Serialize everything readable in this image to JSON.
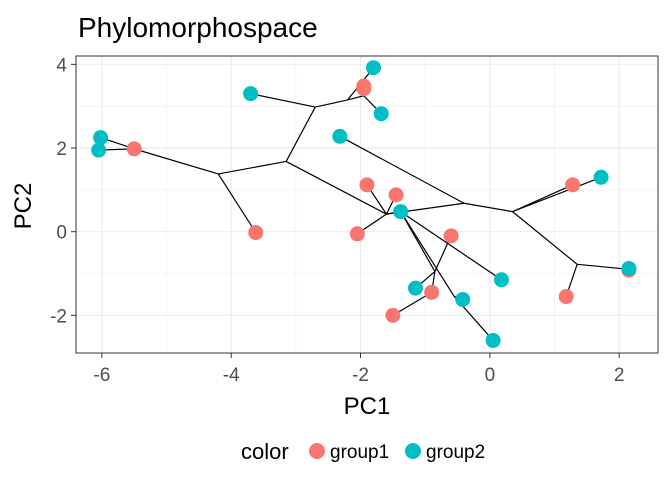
{
  "chart_data": {
    "type": "scatter",
    "title": "Phylomorphospace",
    "xlabel": "PC1",
    "ylabel": "PC2",
    "xlim": [
      -6.4,
      2.6
    ],
    "ylim": [
      -2.9,
      4.2
    ],
    "x_ticks": [
      -6,
      -4,
      -2,
      0,
      2
    ],
    "y_ticks": [
      -2,
      0,
      2,
      4
    ],
    "grid": true,
    "legend": {
      "title": "color",
      "position": "bottom",
      "entries": [
        {
          "label": "group1",
          "color": "#F8766D"
        },
        {
          "label": "group2",
          "color": "#00BFC4"
        }
      ]
    },
    "series": [
      {
        "name": "group1",
        "color": "#F8766D",
        "points": [
          {
            "x": -5.5,
            "y": 1.98
          },
          {
            "x": -3.62,
            "y": -0.02
          },
          {
            "x": -1.95,
            "y": 3.48
          },
          {
            "x": -1.95,
            "y": 3.42
          },
          {
            "x": -1.9,
            "y": 1.12
          },
          {
            "x": -2.05,
            "y": -0.05
          },
          {
            "x": -1.45,
            "y": 0.88
          },
          {
            "x": -0.6,
            "y": -0.1
          },
          {
            "x": -0.9,
            "y": -1.45
          },
          {
            "x": -1.5,
            "y": -2.0
          },
          {
            "x": 1.28,
            "y": 1.12
          },
          {
            "x": 1.18,
            "y": -1.55
          },
          {
            "x": 2.15,
            "y": -0.92
          }
        ]
      },
      {
        "name": "group2",
        "color": "#00BFC4",
        "points": [
          {
            "x": -6.02,
            "y": 2.25
          },
          {
            "x": -6.05,
            "y": 1.95
          },
          {
            "x": -3.7,
            "y": 3.3
          },
          {
            "x": -1.8,
            "y": 3.92
          },
          {
            "x": -1.68,
            "y": 2.82
          },
          {
            "x": -2.32,
            "y": 2.28
          },
          {
            "x": -1.38,
            "y": 0.48
          },
          {
            "x": -1.15,
            "y": -1.35
          },
          {
            "x": -0.42,
            "y": -1.62
          },
          {
            "x": 0.18,
            "y": -1.15
          },
          {
            "x": 0.05,
            "y": -2.6
          },
          {
            "x": 1.72,
            "y": 1.3
          },
          {
            "x": 2.15,
            "y": -0.88
          }
        ]
      }
    ],
    "tree_edges": [
      [
        [
          -6.02,
          2.25
        ],
        [
          -5.5,
          1.98
        ]
      ],
      [
        [
          -6.05,
          1.95
        ],
        [
          -5.5,
          1.98
        ]
      ],
      [
        [
          -5.5,
          1.98
        ],
        [
          -4.2,
          1.38
        ]
      ],
      [
        [
          -4.2,
          1.38
        ],
        [
          -3.62,
          -0.02
        ]
      ],
      [
        [
          -4.2,
          1.38
        ],
        [
          -3.15,
          1.68
        ]
      ],
      [
        [
          -3.15,
          1.68
        ],
        [
          -2.7,
          2.98
        ]
      ],
      [
        [
          -2.7,
          2.98
        ],
        [
          -3.7,
          3.3
        ]
      ],
      [
        [
          -2.7,
          2.98
        ],
        [
          -2.2,
          3.15
        ]
      ],
      [
        [
          -2.2,
          3.15
        ],
        [
          -1.8,
          3.92
        ]
      ],
      [
        [
          -2.2,
          3.15
        ],
        [
          -1.95,
          3.25
        ]
      ],
      [
        [
          -1.95,
          3.25
        ],
        [
          -1.95,
          3.45
        ]
      ],
      [
        [
          -1.95,
          3.25
        ],
        [
          -1.68,
          2.82
        ]
      ],
      [
        [
          -3.15,
          1.68
        ],
        [
          -1.6,
          0.42
        ]
      ],
      [
        [
          -1.6,
          0.42
        ],
        [
          -1.9,
          1.12
        ]
      ],
      [
        [
          -1.6,
          0.42
        ],
        [
          -1.45,
          0.88
        ]
      ],
      [
        [
          -1.6,
          0.42
        ],
        [
          -0.4,
          0.68
        ]
      ],
      [
        [
          -2.32,
          2.28
        ],
        [
          -0.4,
          0.68
        ]
      ],
      [
        [
          -0.4,
          0.68
        ],
        [
          0.35,
          0.48
        ]
      ],
      [
        [
          0.35,
          0.48
        ],
        [
          1.28,
          1.12
        ]
      ],
      [
        [
          0.35,
          0.48
        ],
        [
          1.72,
          1.3
        ]
      ],
      [
        [
          0.35,
          0.48
        ],
        [
          1.35,
          -0.78
        ]
      ],
      [
        [
          1.35,
          -0.78
        ],
        [
          2.15,
          -0.9
        ]
      ],
      [
        [
          1.35,
          -0.78
        ],
        [
          1.18,
          -1.55
        ]
      ],
      [
        [
          -1.6,
          0.42
        ],
        [
          -2.05,
          -0.05
        ]
      ],
      [
        [
          -1.6,
          0.42
        ],
        [
          -1.38,
          0.48
        ]
      ],
      [
        [
          -1.38,
          0.48
        ],
        [
          -0.85,
          -0.95
        ]
      ],
      [
        [
          -0.85,
          -0.95
        ],
        [
          -0.6,
          -0.1
        ]
      ],
      [
        [
          -0.85,
          -0.95
        ],
        [
          -1.15,
          -1.35
        ]
      ],
      [
        [
          -0.85,
          -0.95
        ],
        [
          -0.9,
          -1.45
        ]
      ],
      [
        [
          -0.9,
          -1.45
        ],
        [
          -1.5,
          -2.0
        ]
      ],
      [
        [
          -1.38,
          0.48
        ],
        [
          -0.55,
          -1.55
        ]
      ],
      [
        [
          -0.55,
          -1.55
        ],
        [
          -0.42,
          -1.62
        ]
      ],
      [
        [
          -0.55,
          -1.55
        ],
        [
          0.05,
          -2.6
        ]
      ],
      [
        [
          -1.38,
          0.48
        ],
        [
          0.18,
          -1.15
        ]
      ]
    ]
  }
}
